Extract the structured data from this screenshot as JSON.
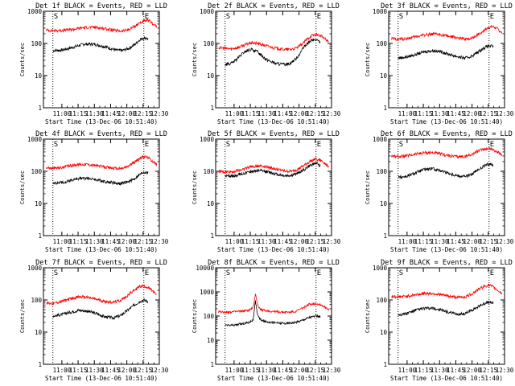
{
  "figure": {
    "start_time_label": "Start Time (13-Dec-06 10:51:40)",
    "marker_S": "S",
    "marker_E": "E",
    "ylabel": "Counts/sec",
    "x_tick_labels": [
      "11:00",
      "11:15",
      "11:30",
      "11:45",
      "12:00",
      "12:15",
      "12:30"
    ],
    "colors": {
      "events": "#000000",
      "lld": "#ff0000",
      "axis": "#000000",
      "marker_line": "#000000"
    }
  },
  "chart_data": [
    {
      "type": "line",
      "title": "Det 1f BLACK = Events, RED = LLD",
      "xlabel": "Start Time (13-Dec-06 10:51:40)",
      "ylabel": "Counts/sec",
      "yscale": "log",
      "ylim": [
        1,
        1000
      ],
      "yticks": [
        "1",
        "10",
        "100",
        "1000"
      ],
      "xlim_min": [
        -8.7,
        47.7
      ],
      "x_ticks_min": [
        8.3,
        23.3,
        38.3,
        53.3,
        68.3,
        83.3,
        98.3
      ],
      "marker_S_min": 0,
      "marker_E_min": 84,
      "series": [
        {
          "role": "events",
          "color": "#000000",
          "x_min": [
            0,
            8,
            18,
            28,
            38,
            48,
            58,
            64,
            70,
            76,
            80,
            84,
            88
          ],
          "y": [
            60,
            62,
            75,
            95,
            95,
            80,
            62,
            60,
            70,
            95,
            130,
            150,
            140
          ]
        },
        {
          "role": "lld",
          "color": "#ff0000",
          "x_min": [
            -6,
            0,
            8,
            18,
            28,
            38,
            48,
            58,
            64,
            70,
            76,
            80,
            84,
            88,
            92,
            96
          ],
          "y": [
            260,
            250,
            255,
            270,
            310,
            320,
            290,
            250,
            240,
            270,
            350,
            430,
            490,
            520,
            420,
            330
          ]
        }
      ]
    },
    {
      "type": "line",
      "title": "Det 2f BLACK = Events, RED = LLD",
      "xlabel": "Start Time (13-Dec-06 10:51:40)",
      "ylabel": "Counts/sec",
      "yscale": "log",
      "ylim": [
        1,
        1000
      ],
      "yticks": [
        "1",
        "10",
        "100",
        "1000"
      ],
      "xlim_min": [
        -8.7,
        47.7
      ],
      "x_ticks_min": [
        8.3,
        23.3,
        38.3,
        53.3,
        68.3,
        83.3,
        98.3
      ],
      "marker_S_min": 0,
      "marker_E_min": 84,
      "series": [
        {
          "role": "events",
          "color": "#000000",
          "x_min": [
            0,
            6,
            12,
            18,
            24,
            30,
            38,
            46,
            54,
            60,
            66,
            72,
            76,
            80,
            84,
            88
          ],
          "y": [
            22,
            24,
            35,
            55,
            65,
            55,
            32,
            24,
            22,
            24,
            35,
            70,
            100,
            125,
            130,
            110
          ]
        },
        {
          "role": "lld",
          "color": "#ff0000",
          "x_min": [
            -6,
            0,
            6,
            12,
            18,
            24,
            30,
            38,
            46,
            54,
            60,
            66,
            72,
            76,
            80,
            84,
            88,
            92,
            96
          ],
          "y": [
            75,
            70,
            68,
            75,
            90,
            105,
            100,
            85,
            72,
            65,
            65,
            72,
            100,
            140,
            175,
            190,
            175,
            140,
            110
          ]
        }
      ]
    },
    {
      "type": "line",
      "title": "Det 3f BLACK = Events, RED = LLD",
      "xlabel": "Start Time (13-Dec-06 10:51:40)",
      "ylabel": "Counts/sec",
      "yscale": "log",
      "ylim": [
        1,
        1000
      ],
      "yticks": [
        "1",
        "10",
        "100",
        "1000"
      ],
      "xlim_min": [
        -8.7,
        47.7
      ],
      "x_ticks_min": [
        8.3,
        23.3,
        38.3,
        53.3,
        68.3,
        83.3,
        98.3
      ],
      "marker_S_min": 0,
      "marker_E_min": 84,
      "series": [
        {
          "role": "events",
          "color": "#000000",
          "x_min": [
            0,
            8,
            16,
            24,
            32,
            40,
            48,
            56,
            62,
            68,
            74,
            80,
            84,
            88
          ],
          "y": [
            35,
            38,
            45,
            55,
            60,
            55,
            45,
            38,
            35,
            40,
            55,
            75,
            85,
            80
          ]
        },
        {
          "role": "lld",
          "color": "#ff0000",
          "x_min": [
            -6,
            0,
            8,
            16,
            24,
            32,
            40,
            48,
            56,
            62,
            68,
            74,
            80,
            84,
            88,
            92,
            96
          ],
          "y": [
            140,
            135,
            140,
            160,
            185,
            195,
            185,
            165,
            145,
            135,
            145,
            190,
            260,
            320,
            330,
            280,
            210
          ]
        }
      ]
    },
    {
      "type": "line",
      "title": "Det 4f BLACK = Events, RED = LLD",
      "xlabel": "Start Time (13-Dec-06 10:51:40)",
      "ylabel": "Counts/sec",
      "yscale": "log",
      "ylim": [
        1,
        1000
      ],
      "yticks": [
        "1",
        "10",
        "100",
        "1000"
      ],
      "xlim_min": [
        -8.7,
        47.7
      ],
      "x_ticks_min": [
        8.3,
        23.3,
        38.3,
        53.3,
        68.3,
        83.3,
        98.3
      ],
      "marker_S_min": 0,
      "marker_E_min": 84,
      "series": [
        {
          "role": "events",
          "color": "#000000",
          "x_min": [
            0,
            8,
            16,
            24,
            32,
            40,
            48,
            56,
            62,
            68,
            74,
            80,
            84,
            88
          ],
          "y": [
            42,
            45,
            52,
            60,
            62,
            55,
            48,
            44,
            42,
            45,
            55,
            78,
            95,
            90
          ]
        },
        {
          "role": "lld",
          "color": "#ff0000",
          "x_min": [
            -6,
            0,
            8,
            16,
            24,
            32,
            40,
            48,
            56,
            62,
            68,
            74,
            80,
            84,
            88,
            92,
            96
          ],
          "y": [
            130,
            125,
            130,
            150,
            165,
            165,
            150,
            135,
            125,
            120,
            135,
            180,
            250,
            290,
            270,
            210,
            160
          ]
        }
      ]
    },
    {
      "type": "line",
      "title": "Det 5f BLACK = Events, RED = LLD",
      "xlabel": "Start Time (13-Dec-06 10:51:40)",
      "ylabel": "Counts/sec",
      "yscale": "log",
      "ylim": [
        1,
        1000
      ],
      "yticks": [
        "1",
        "10",
        "100",
        "1000"
      ],
      "xlim_min": [
        -8.7,
        47.7
      ],
      "x_ticks_min": [
        8.3,
        23.3,
        38.3,
        53.3,
        68.3,
        83.3,
        98.3
      ],
      "marker_S_min": 0,
      "marker_E_min": 84,
      "series": [
        {
          "role": "events",
          "color": "#000000",
          "x_min": [
            0,
            8,
            16,
            24,
            32,
            40,
            48,
            56,
            62,
            68,
            74,
            80,
            84,
            88
          ],
          "y": [
            70,
            72,
            85,
            100,
            105,
            95,
            80,
            72,
            75,
            90,
            120,
            160,
            180,
            150
          ]
        },
        {
          "role": "lld",
          "color": "#ff0000",
          "x_min": [
            -6,
            0,
            8,
            16,
            24,
            32,
            40,
            48,
            56,
            62,
            68,
            74,
            80,
            84,
            88,
            92,
            96
          ],
          "y": [
            100,
            95,
            98,
            115,
            140,
            150,
            135,
            115,
            100,
            100,
            120,
            160,
            220,
            240,
            220,
            180,
            140
          ]
        }
      ]
    },
    {
      "type": "line",
      "title": "Det 6f BLACK = Events, RED = LLD",
      "xlabel": "Start Time (13-Dec-06 10:51:40)",
      "ylabel": "Counts/sec",
      "yscale": "log",
      "ylim": [
        1,
        1000
      ],
      "yticks": [
        "1",
        "10",
        "100",
        "1000"
      ],
      "xlim_min": [
        -8.7,
        47.7
      ],
      "x_ticks_min": [
        8.3,
        23.3,
        38.3,
        53.3,
        68.3,
        83.3,
        98.3
      ],
      "marker_S_min": 0,
      "marker_E_min": 84,
      "series": [
        {
          "role": "events",
          "color": "#000000",
          "x_min": [
            0,
            8,
            16,
            24,
            32,
            40,
            48,
            56,
            62,
            68,
            74,
            80,
            84,
            88
          ],
          "y": [
            65,
            70,
            90,
            115,
            120,
            105,
            85,
            72,
            70,
            80,
            110,
            150,
            170,
            160
          ]
        },
        {
          "role": "lld",
          "color": "#ff0000",
          "x_min": [
            -6,
            0,
            8,
            16,
            24,
            32,
            40,
            48,
            56,
            62,
            68,
            74,
            80,
            84,
            88,
            92,
            96
          ],
          "y": [
            300,
            290,
            300,
            340,
            380,
            380,
            340,
            300,
            285,
            290,
            340,
            430,
            500,
            520,
            470,
            390,
            320
          ]
        }
      ]
    },
    {
      "type": "line",
      "title": "Det 7f BLACK = Events, RED = LLD",
      "xlabel": "Start Time (13-Dec-06 10:51:40)",
      "ylabel": "Counts/sec",
      "yscale": "log",
      "ylim": [
        1,
        1000
      ],
      "yticks": [
        "1",
        "10",
        "100",
        "1000"
      ],
      "xlim_min": [
        -8.7,
        47.7
      ],
      "x_ticks_min": [
        8.3,
        23.3,
        38.3,
        53.3,
        68.3,
        83.3,
        98.3
      ],
      "marker_S_min": 0,
      "marker_E_min": 84,
      "series": [
        {
          "role": "events",
          "color": "#000000",
          "x_min": [
            0,
            8,
            16,
            24,
            32,
            40,
            48,
            56,
            62,
            68,
            74,
            80,
            84,
            88
          ],
          "y": [
            32,
            35,
            42,
            48,
            45,
            38,
            30,
            28,
            32,
            45,
            65,
            90,
            100,
            90
          ]
        },
        {
          "role": "lld",
          "color": "#ff0000",
          "x_min": [
            -6,
            0,
            8,
            16,
            24,
            32,
            40,
            48,
            56,
            62,
            68,
            74,
            80,
            84,
            88,
            92,
            96
          ],
          "y": [
            80,
            78,
            90,
            110,
            125,
            120,
            105,
            90,
            85,
            95,
            130,
            190,
            260,
            280,
            240,
            190,
            140
          ]
        }
      ]
    },
    {
      "type": "line",
      "title": "Det 8f BLACK = Events, RED = LLD",
      "xlabel": "Start Time (13-Dec-06 10:51:40)",
      "ylabel": "Counts/sec",
      "yscale": "log",
      "ylim": [
        1,
        10000
      ],
      "yticks": [
        "1",
        "10",
        "100",
        "1000",
        "10000"
      ],
      "xlim_min": [
        -8.7,
        47.7
      ],
      "x_ticks_min": [
        8.3,
        23.3,
        38.3,
        53.3,
        68.3,
        83.3,
        98.3
      ],
      "marker_S_min": 0,
      "marker_E_min": 84,
      "series": [
        {
          "role": "events",
          "color": "#000000",
          "x_min": [
            0,
            8,
            16,
            22,
            26,
            28,
            30,
            32,
            36,
            44,
            52,
            60,
            66,
            72,
            78,
            84,
            88
          ],
          "y": [
            40,
            42,
            48,
            55,
            70,
            400,
            120,
            75,
            60,
            55,
            50,
            50,
            55,
            70,
            90,
            100,
            95
          ]
        },
        {
          "role": "lld",
          "color": "#ff0000",
          "x_min": [
            -6,
            0,
            8,
            16,
            22,
            26,
            28,
            30,
            32,
            36,
            44,
            52,
            60,
            66,
            72,
            78,
            84,
            88,
            92,
            96
          ],
          "y": [
            150,
            145,
            150,
            160,
            175,
            220,
            900,
            300,
            200,
            170,
            155,
            145,
            145,
            160,
            220,
            310,
            330,
            300,
            240,
            190
          ]
        }
      ]
    },
    {
      "type": "line",
      "title": "Det 9f BLACK = Events, RED = LLD",
      "xlabel": "Start Time (13-Dec-06 10:51:40)",
      "ylabel": "Counts/sec",
      "yscale": "log",
      "ylim": [
        1,
        1000
      ],
      "yticks": [
        "1",
        "10",
        "100",
        "1000"
      ],
      "xlim_min": [
        -8.7,
        47.7
      ],
      "x_ticks_min": [
        8.3,
        23.3,
        38.3,
        53.3,
        68.3,
        83.3,
        98.3
      ],
      "marker_S_min": 0,
      "marker_E_min": 84,
      "series": [
        {
          "role": "events",
          "color": "#000000",
          "x_min": [
            0,
            8,
            16,
            24,
            32,
            40,
            48,
            56,
            62,
            68,
            74,
            80,
            84,
            88
          ],
          "y": [
            35,
            38,
            48,
            55,
            55,
            48,
            40,
            36,
            38,
            48,
            62,
            80,
            85,
            80
          ]
        },
        {
          "role": "lld",
          "color": "#ff0000",
          "x_min": [
            -6,
            0,
            8,
            16,
            24,
            32,
            40,
            48,
            56,
            62,
            68,
            74,
            80,
            84,
            88,
            92,
            96
          ],
          "y": [
            130,
            125,
            130,
            145,
            160,
            160,
            145,
            130,
            120,
            125,
            155,
            210,
            270,
            290,
            250,
            200,
            160
          ]
        }
      ]
    }
  ]
}
